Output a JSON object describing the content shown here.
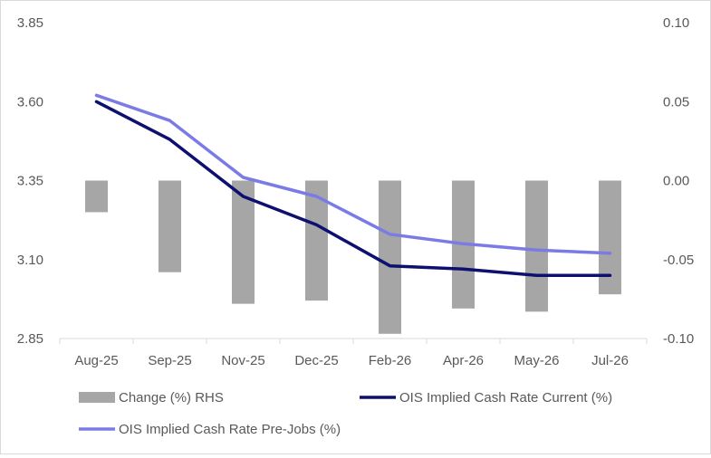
{
  "chart_data": {
    "type": "bar-line-combo",
    "categories": [
      "Aug-25",
      "Sep-25",
      "Nov-25",
      "Dec-25",
      "Feb-26",
      "Apr-26",
      "May-26",
      "Jul-26"
    ],
    "series": [
      {
        "name": "Change (%) RHS",
        "type": "bar",
        "axis": "right",
        "color": "#a6a6a6",
        "values": [
          -0.02,
          -0.058,
          -0.078,
          -0.076,
          -0.097,
          -0.081,
          -0.083,
          -0.072
        ]
      },
      {
        "name": "OIS Implied Cash Rate Current (%)",
        "type": "line",
        "axis": "left",
        "color": "#0d1070",
        "values": [
          3.6,
          3.48,
          3.3,
          3.21,
          3.08,
          3.07,
          3.05,
          3.05
        ]
      },
      {
        "name": "OIS Implied Cash Rate Pre-Jobs (%)",
        "type": "line",
        "axis": "left",
        "color": "#7b7be6",
        "values": [
          3.62,
          3.54,
          3.36,
          3.3,
          3.18,
          3.15,
          3.13,
          3.12
        ]
      }
    ],
    "y_left": {
      "min": 2.85,
      "max": 3.85,
      "ticks": [
        "3.85",
        "3.60",
        "3.35",
        "3.10",
        "2.85"
      ]
    },
    "y_right": {
      "min": -0.1,
      "max": 0.1,
      "ticks": [
        "0.10",
        "0.05",
        "0.00",
        "-0.05",
        "-0.10"
      ]
    },
    "grid": false,
    "legend_position": "bottom"
  },
  "legend": [
    {
      "label": "Change (%) RHS",
      "kind": "bar",
      "color": "#a6a6a6"
    },
    {
      "label": "OIS Implied Cash Rate Current (%)",
      "kind": "line",
      "color": "#0d1070"
    },
    {
      "label": "OIS Implied Cash Rate Pre-Jobs (%)",
      "kind": "line",
      "color": "#7b7be6"
    }
  ]
}
